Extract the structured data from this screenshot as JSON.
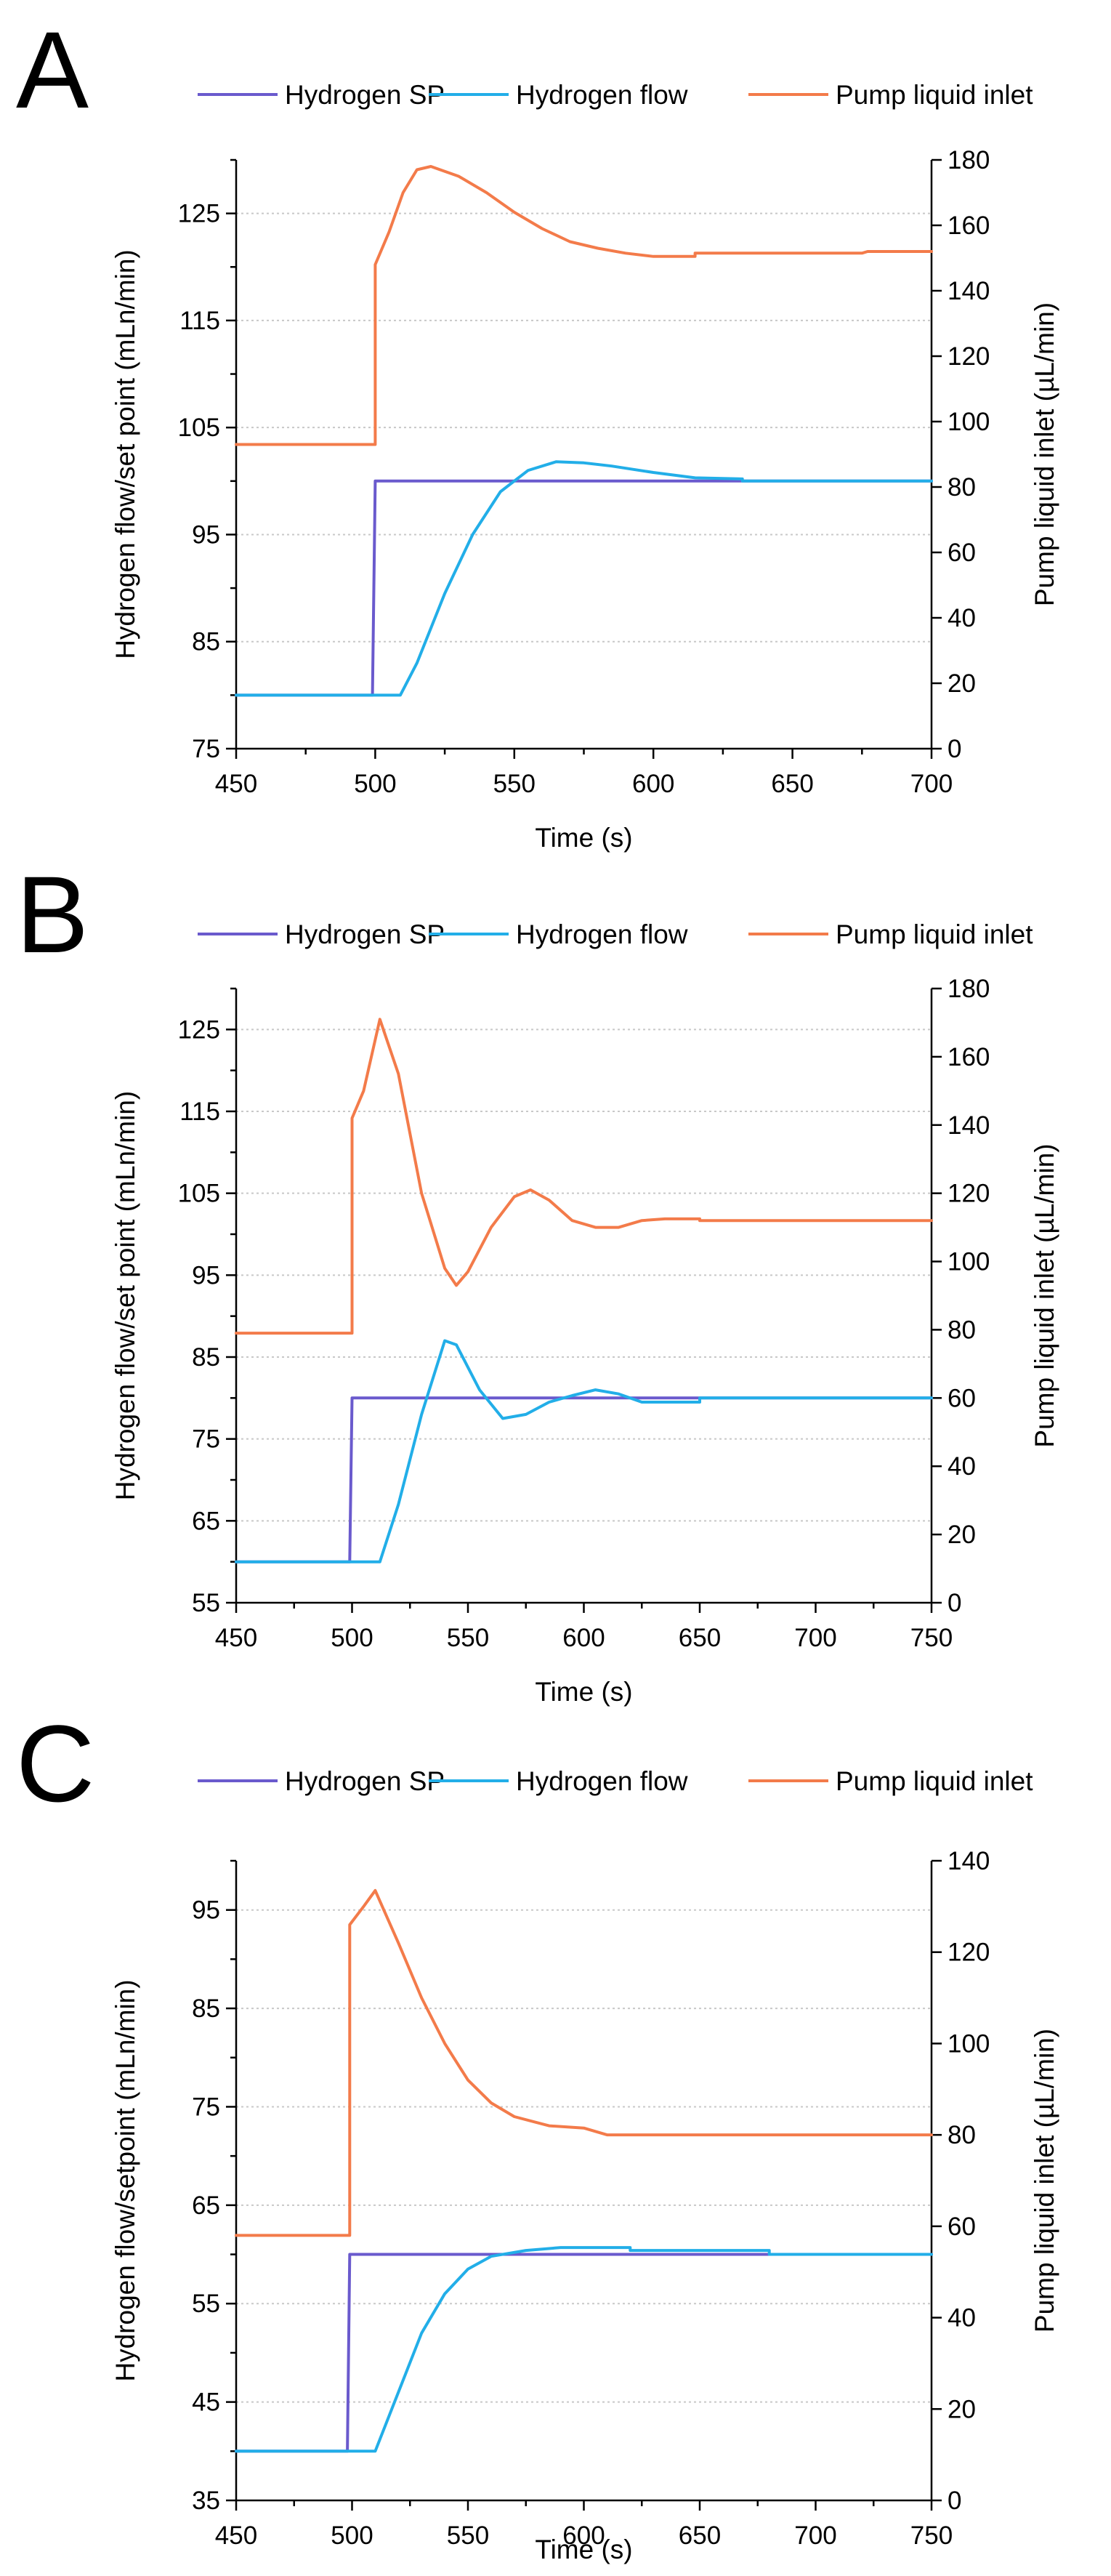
{
  "colors": {
    "setpoint": "#6a5acd",
    "flow": "#22aee8",
    "pump": "#f37b4a"
  },
  "chart_data": [
    {
      "type": "line",
      "panel_label": "A",
      "legend": [
        "Hydrogen SP",
        "Hydrogen flow",
        "Pump liquid inlet"
      ],
      "xlabel": "Time  (s)",
      "ylabel": "Hydrogen flow/set point (mLn/min)",
      "y2label": "Pump liquid inlet (µL/min)",
      "xlim": [
        450,
        700
      ],
      "ylim": [
        75,
        130
      ],
      "y2lim": [
        0,
        180
      ],
      "xticks": [
        450,
        500,
        550,
        600,
        650,
        700
      ],
      "yticks": [
        75,
        85,
        95,
        105,
        115,
        125
      ],
      "y2ticks": [
        0,
        20,
        40,
        60,
        80,
        100,
        120,
        140,
        160,
        180
      ],
      "grid": true,
      "series": [
        {
          "name": "Hydrogen SP",
          "axis": "left",
          "color_key": "setpoint",
          "points": [
            [
              450,
              80
            ],
            [
              499,
              80
            ],
            [
              500,
              100
            ],
            [
              700,
              100
            ]
          ]
        },
        {
          "name": "Hydrogen flow",
          "axis": "left",
          "color_key": "flow",
          "points": [
            [
              450,
              80
            ],
            [
              509,
              80
            ],
            [
              515,
              83
            ],
            [
              525,
              89.5
            ],
            [
              535,
              95
            ],
            [
              545,
              99
            ],
            [
              555,
              101
            ],
            [
              565,
              101.8
            ],
            [
              575,
              101.7
            ],
            [
              585,
              101.4
            ],
            [
              600,
              100.8
            ],
            [
              615,
              100.3
            ],
            [
              632,
              100.2
            ],
            [
              632,
              100
            ],
            [
              700,
              100
            ]
          ]
        },
        {
          "name": "Pump liquid inlet",
          "axis": "right",
          "color_key": "pump",
          "points": [
            [
              450,
              93
            ],
            [
              500,
              93
            ],
            [
              500,
              148
            ],
            [
              505,
              158
            ],
            [
              510,
              170
            ],
            [
              515,
              177
            ],
            [
              520,
              178
            ],
            [
              530,
              175
            ],
            [
              540,
              170
            ],
            [
              550,
              164
            ],
            [
              560,
              159
            ],
            [
              570,
              155
            ],
            [
              580,
              153
            ],
            [
              590,
              151.5
            ],
            [
              600,
              150.5
            ],
            [
              615,
              150.5
            ],
            [
              615,
              151.5
            ],
            [
              640,
              151.5
            ],
            [
              660,
              151.5
            ],
            [
              675,
              151.5
            ],
            [
              677,
              152
            ],
            [
              700,
              152
            ]
          ]
        }
      ]
    },
    {
      "type": "line",
      "panel_label": "B",
      "legend": [
        "Hydrogen SP",
        "Hydrogen flow",
        "Pump liquid inlet"
      ],
      "xlabel": "Time  (s)",
      "ylabel": "Hydrogen flow/set point (mLn/min)",
      "y2label": "Pump liquid inlet (µL/min)",
      "xlim": [
        450,
        750
      ],
      "ylim": [
        55,
        130
      ],
      "y2lim": [
        0,
        180
      ],
      "xticks": [
        450,
        500,
        550,
        600,
        650,
        700,
        750
      ],
      "yticks": [
        55,
        65,
        75,
        85,
        95,
        105,
        115,
        125
      ],
      "y2ticks": [
        0,
        20,
        40,
        60,
        80,
        100,
        120,
        140,
        160,
        180
      ],
      "grid": true,
      "series": [
        {
          "name": "Hydrogen SP",
          "axis": "left",
          "color_key": "setpoint",
          "points": [
            [
              450,
              60
            ],
            [
              499,
              60
            ],
            [
              500,
              80
            ],
            [
              750,
              80
            ]
          ]
        },
        {
          "name": "Hydrogen flow",
          "axis": "left",
          "color_key": "flow",
          "points": [
            [
              450,
              60
            ],
            [
              512,
              60
            ],
            [
              520,
              67
            ],
            [
              530,
              78
            ],
            [
              540,
              87
            ],
            [
              545,
              86.5
            ],
            [
              555,
              81
            ],
            [
              565,
              77.5
            ],
            [
              575,
              78
            ],
            [
              585,
              79.5
            ],
            [
              595,
              80.3
            ],
            [
              605,
              81
            ],
            [
              615,
              80.5
            ],
            [
              625,
              79.5
            ],
            [
              635,
              79.5
            ],
            [
              650,
              79.5
            ],
            [
              650,
              80
            ],
            [
              750,
              80
            ]
          ]
        },
        {
          "name": "Pump liquid inlet",
          "axis": "right",
          "color_key": "pump",
          "points": [
            [
              450,
              79
            ],
            [
              500,
              79
            ],
            [
              500,
              142
            ],
            [
              505,
              150
            ],
            [
              512,
              171
            ],
            [
              520,
              155
            ],
            [
              530,
              120
            ],
            [
              540,
              98
            ],
            [
              545,
              93
            ],
            [
              550,
              97
            ],
            [
              560,
              110
            ],
            [
              570,
              119
            ],
            [
              577,
              121
            ],
            [
              585,
              118
            ],
            [
              595,
              112
            ],
            [
              605,
              110
            ],
            [
              615,
              110
            ],
            [
              625,
              112
            ],
            [
              635,
              112.5
            ],
            [
              650,
              112.5
            ],
            [
              650,
              112
            ],
            [
              750,
              112
            ]
          ]
        }
      ]
    },
    {
      "type": "line",
      "panel_label": "C",
      "legend": [
        "Hydrogen SP",
        "Hydrogen flow",
        "Pump liquid inlet"
      ],
      "xlabel": "Time  (s)",
      "ylabel": "Hydrogen flow/setpoint (mLn/min)",
      "y2label": "Pump liquid inlet (µL/min)",
      "xlim": [
        450,
        750
      ],
      "ylim": [
        35,
        100
      ],
      "y2lim": [
        0,
        140
      ],
      "xticks": [
        450,
        500,
        550,
        600,
        650,
        700,
        750
      ],
      "yticks": [
        35,
        45,
        55,
        65,
        75,
        85,
        95
      ],
      "y2ticks": [
        0,
        20,
        40,
        60,
        80,
        100,
        120,
        140
      ],
      "grid": true,
      "series": [
        {
          "name": "Hydrogen SP",
          "axis": "left",
          "color_key": "setpoint",
          "points": [
            [
              450,
              40
            ],
            [
              498,
              40
            ],
            [
              499,
              60
            ],
            [
              750,
              60
            ]
          ]
        },
        {
          "name": "Hydrogen flow",
          "axis": "left",
          "color_key": "flow",
          "points": [
            [
              450,
              40
            ],
            [
              510,
              40
            ],
            [
              520,
              46
            ],
            [
              530,
              52
            ],
            [
              540,
              56
            ],
            [
              550,
              58.5
            ],
            [
              560,
              59.8
            ],
            [
              575,
              60.4
            ],
            [
              590,
              60.7
            ],
            [
              620,
              60.7
            ],
            [
              620,
              60.4
            ],
            [
              680,
              60.4
            ],
            [
              680,
              60
            ],
            [
              750,
              60
            ]
          ]
        },
        {
          "name": "Pump liquid inlet",
          "axis": "right",
          "color_key": "pump",
          "points": [
            [
              450,
              58
            ],
            [
              499,
              58
            ],
            [
              499,
              126
            ],
            [
              505,
              130
            ],
            [
              510,
              133.5
            ],
            [
              520,
              122
            ],
            [
              530,
              110
            ],
            [
              540,
              100
            ],
            [
              550,
              92
            ],
            [
              560,
              87
            ],
            [
              570,
              84
            ],
            [
              585,
              82
            ],
            [
              600,
              81.5
            ],
            [
              610,
              80
            ],
            [
              650,
              80
            ],
            [
              750,
              80
            ]
          ]
        }
      ]
    }
  ]
}
